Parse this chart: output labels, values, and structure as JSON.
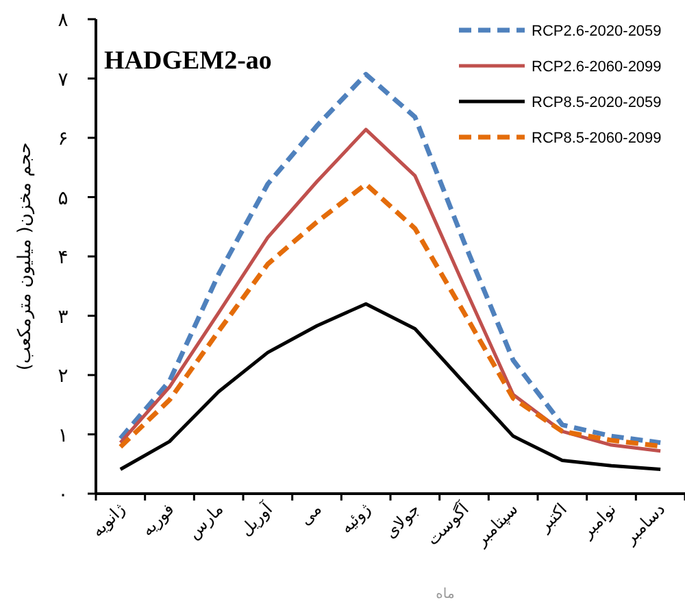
{
  "chart_data": {
    "type": "line",
    "title": "HADGEM2-ao",
    "ylabel": "حجم مخزن( میلیون مترمکعب)",
    "xlabel": "ماه",
    "categories": [
      "ژانویه",
      "فوریه",
      "مارس",
      "آوریل",
      "می",
      "ژوئیه",
      "جولای",
      "آگوست",
      "سپتامبر",
      "اکتبر",
      "نوامبر",
      "دسامبر"
    ],
    "ylim": [
      0,
      8
    ],
    "yticks": [
      {
        "value": 0,
        "label": "۰"
      },
      {
        "value": 1,
        "label": "۱"
      },
      {
        "value": 2,
        "label": "۲"
      },
      {
        "value": 3,
        "label": "۳"
      },
      {
        "value": 4,
        "label": "۴"
      },
      {
        "value": 5,
        "label": "۵"
      },
      {
        "value": 6,
        "label": "۶"
      },
      {
        "value": 7,
        "label": "۷"
      },
      {
        "value": 8,
        "label": "۸"
      }
    ],
    "legend": "top right",
    "series": [
      {
        "name": "RCP2.6-2020-2059",
        "color": "#4f81bd",
        "line_style": "dashed",
        "values": [
          0.93,
          1.9,
          3.7,
          5.22,
          6.2,
          7.07,
          6.35,
          4.24,
          2.25,
          1.16,
          0.97,
          0.86
        ]
      },
      {
        "name": "RCP2.6-2060-2099",
        "color": "#c0504d",
        "line_style": "solid",
        "values": [
          0.86,
          1.8,
          3.05,
          4.32,
          5.26,
          6.14,
          5.36,
          3.5,
          1.67,
          1.05,
          0.82,
          0.72
        ]
      },
      {
        "name": "RCP8.5-2020-2059",
        "color": "#000000",
        "line_style": "solid",
        "values": [
          0.41,
          0.88,
          1.72,
          2.38,
          2.83,
          3.2,
          2.78,
          1.87,
          0.97,
          0.56,
          0.47,
          0.41
        ]
      },
      {
        "name": "RCP8.5-2060-2099",
        "color": "#e46c0a",
        "line_style": "dashed",
        "values": [
          0.79,
          1.58,
          2.74,
          3.87,
          4.58,
          5.22,
          4.47,
          3.05,
          1.61,
          1.05,
          0.9,
          0.8
        ]
      }
    ]
  }
}
